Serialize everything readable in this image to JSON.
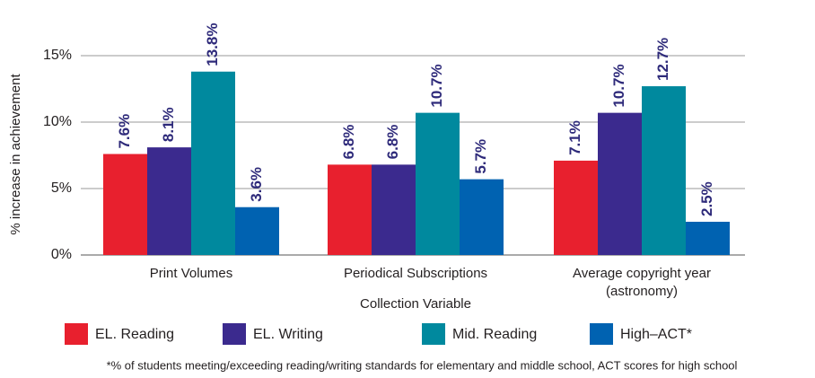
{
  "chart_data": {
    "type": "bar",
    "y_axis_label": "% increase in achievement",
    "x_axis_label": "Collection Variable",
    "categories": [
      "Print Volumes",
      "Periodical Subscriptions",
      "Average copyright year (astronomy)"
    ],
    "series": [
      {
        "name": "EL. Reading",
        "color": "#e8202e",
        "values": [
          7.6,
          6.8,
          7.1
        ],
        "value_labels": [
          "7.6%",
          "6.8%",
          "7.1%"
        ]
      },
      {
        "name": "EL. Writing",
        "color": "#3b2a8e",
        "values": [
          8.1,
          6.8,
          10.7
        ],
        "value_labels": [
          "8.1%",
          "6.8%",
          "10.7%"
        ]
      },
      {
        "name": "Mid. Reading",
        "color": "#00899e",
        "values": [
          13.8,
          10.7,
          12.7
        ],
        "value_labels": [
          "13.8%",
          "10.7%",
          "12.7%"
        ]
      },
      {
        "name": "High–ACT*",
        "color": "#0062b1",
        "values": [
          3.6,
          5.7,
          2.5
        ],
        "value_labels": [
          "3.6%",
          "5.7%",
          "2.5%"
        ]
      }
    ],
    "ylim": [
      0,
      15
    ],
    "yticks": [
      {
        "value": 0,
        "label": "0%"
      },
      {
        "value": 5,
        "label": "5%"
      },
      {
        "value": 10,
        "label": "10%"
      },
      {
        "value": 15,
        "label": "15%"
      }
    ],
    "grid": true,
    "footnote": "*% of students meeting/exceeding reading/writing standards for elementary and middle school, ACT scores for high school"
  }
}
